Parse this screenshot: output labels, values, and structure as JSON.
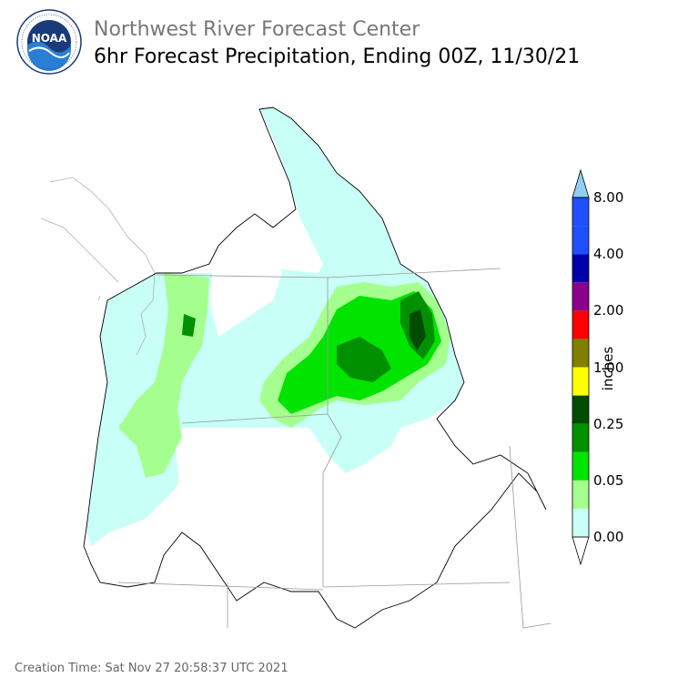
{
  "header": {
    "logo_text": "NOAA",
    "logo_ring_text": "NATIONAL OCEANIC AND ATMOSPHERIC ADMINISTRATION · U.S. DEPARTMENT OF COMMERCE",
    "title": "Northwest River Forecast Center",
    "subtitle": "6hr Forecast Precipitation, Ending 00Z, 11/30/21"
  },
  "legend": {
    "unit": "inches",
    "labels": [
      "8.00",
      "4.00",
      "2.00",
      "1.00",
      "0.25",
      "0.05",
      "0.00"
    ],
    "colors": [
      "#ffffff",
      "#c8fff6",
      "#a4ff8f",
      "#00e400",
      "#009000",
      "#004c00",
      "#ffff00",
      "#808000",
      "#ff0000",
      "#8b008b",
      "#0000a8",
      "#1e50ff",
      "#8fcdf5"
    ],
    "colors_note": "bottom-to-top bins, last is top arrow"
  },
  "footer": {
    "creation_time": "Creation Time: Sat Nov 27 20:58:37 UTC 2021"
  }
}
